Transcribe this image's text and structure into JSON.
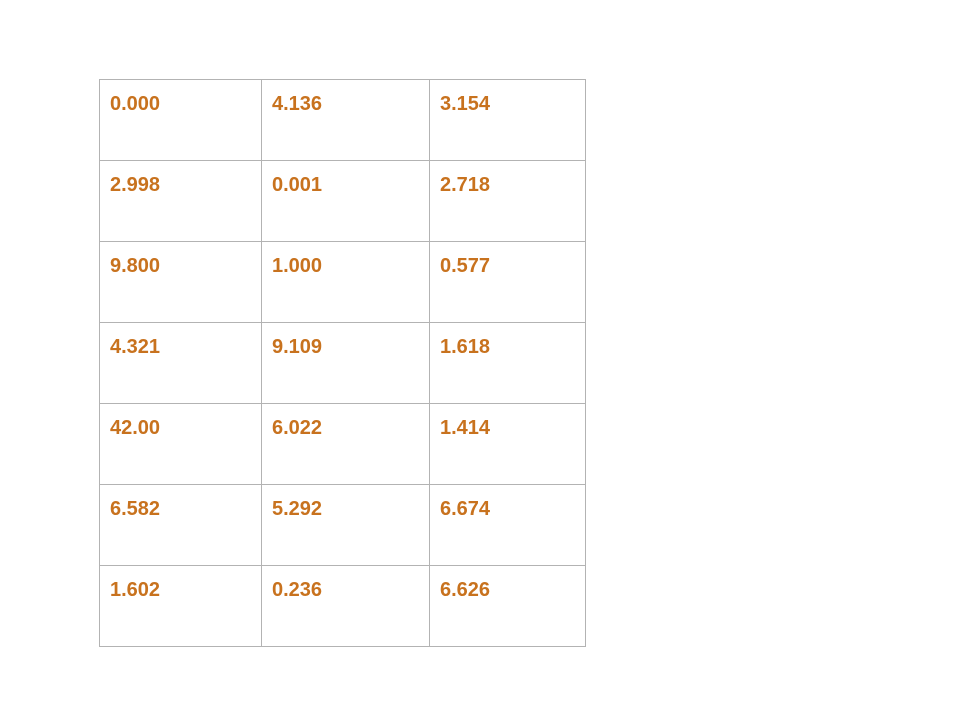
{
  "table": {
    "text_color": "#c8721e",
    "border_color": "#b3b3b3",
    "rows": [
      [
        "0.000",
        "4.136",
        "3.154"
      ],
      [
        "2.998",
        "0.001",
        "2.718"
      ],
      [
        "9.800",
        "1.000",
        "0.577"
      ],
      [
        "4.321",
        "9.109",
        "1.618"
      ],
      [
        "42.00",
        "6.022",
        "1.414"
      ],
      [
        "6.582",
        "5.292",
        "6.674"
      ],
      [
        "1.602",
        "0.236",
        "6.626"
      ]
    ]
  }
}
